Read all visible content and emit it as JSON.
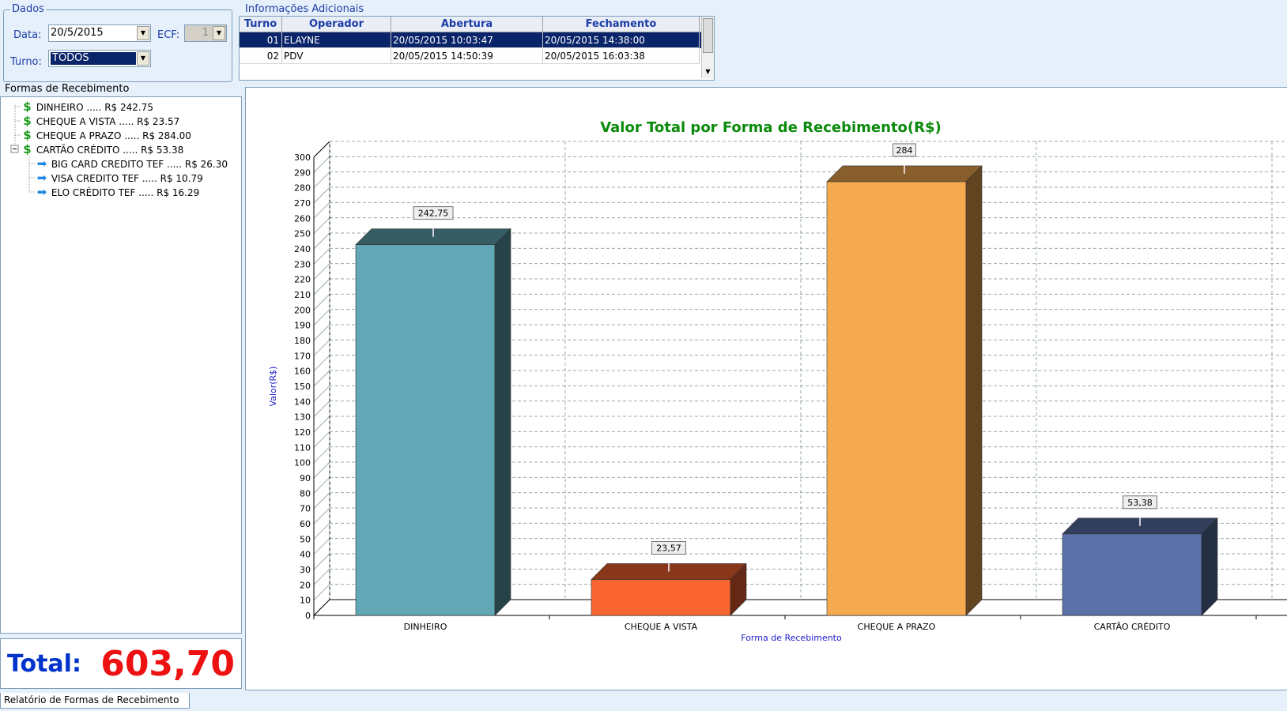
{
  "dados": {
    "title": "Dados",
    "data_label": "Data:",
    "data_value": "20/5/2015",
    "ecf_label": "ECF:",
    "ecf_value": "1",
    "turno_label": "Turno:",
    "turno_value": "TODOS"
  },
  "info": {
    "title": "Informações Adicionais",
    "headers": [
      "Turno",
      "Operador",
      "Abertura",
      "Fechamento"
    ],
    "rows": [
      {
        "turno": "01",
        "operador": "ELAYNE",
        "abertura": "20/05/2015 10:03:47",
        "fechamento": "20/05/2015 14:38:00"
      },
      {
        "turno": "02",
        "operador": "PDV",
        "abertura": "20/05/2015 14:50:39",
        "fechamento": "20/05/2015 16:03:38"
      }
    ]
  },
  "formas": {
    "title": "Formas de Recebimento",
    "items": [
      {
        "label": "DINHEIRO ..... R$ 242.75",
        "icon": "dollar-icon"
      },
      {
        "label": "CHEQUE A VISTA ..... R$ 23.57",
        "icon": "dollar-icon"
      },
      {
        "label": "CHEQUE A PRAZO ..... R$ 284.00",
        "icon": "dollar-icon"
      },
      {
        "label": "CARTÃO CRÉDITO ..... R$ 53.38",
        "icon": "dollar-icon",
        "children": [
          {
            "label": "BIG CARD CREDITO TEF ..... R$ 26.30",
            "icon": "arrow-right-icon"
          },
          {
            "label": "VISA CREDITO TEF ..... R$ 10.79",
            "icon": "arrow-right-icon"
          },
          {
            "label": "ELO CRÉDITO TEF ..... R$ 16.29",
            "icon": "arrow-right-icon"
          }
        ]
      }
    ]
  },
  "total": {
    "label": "Total:",
    "value": "603,70"
  },
  "status_tab": "Relatório de Formas de Recebimento",
  "chart_data": {
    "type": "bar",
    "title": "Valor Total por Forma de Recebimento(R$)",
    "xlabel": "Forma de Recebimento",
    "ylabel": "Valor(R$)",
    "categories": [
      "DINHEIRO",
      "CHEQUE A VISTA",
      "CHEQUE A PRAZO",
      "CARTÃO CRÉDITO"
    ],
    "values": [
      242.75,
      23.57,
      284,
      53.38
    ],
    "value_labels": [
      "242,75",
      "23,57",
      "284",
      "53,38"
    ],
    "colors": [
      "#62a7b5",
      "#f96431",
      "#f6aa50",
      "#5b72a8"
    ],
    "ylim": [
      0,
      300
    ],
    "ytick_step": 10,
    "grid": true,
    "three_d": true
  }
}
